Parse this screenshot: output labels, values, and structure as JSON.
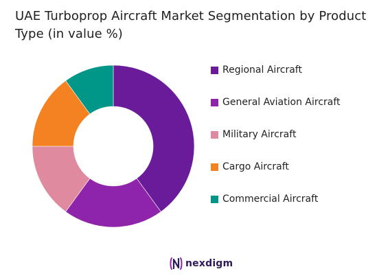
{
  "chart_data": {
    "type": "pie",
    "title": "UAE Turboprop Aircraft Market Segmentation by Product Type (in value %)",
    "categories": [
      "Regional Aircraft",
      "General Aviation Aircraft",
      "Military Aircraft",
      "Cargo Aircraft",
      "Commercial Aircraft"
    ],
    "values": [
      40,
      20,
      15,
      15,
      10
    ],
    "colors": [
      "#6a1b9a",
      "#8e24aa",
      "#e08aa0",
      "#f58220",
      "#009688"
    ],
    "legend_position": "right",
    "donut": true
  },
  "brand": {
    "name": "nexdigm",
    "logo": "nexdigm-logo"
  }
}
